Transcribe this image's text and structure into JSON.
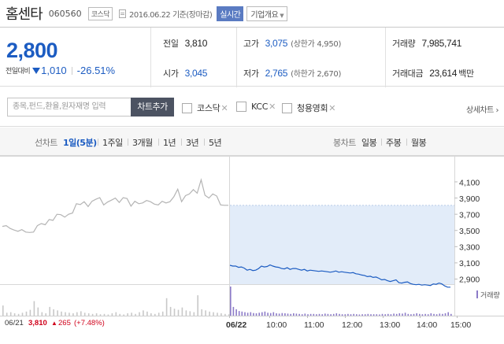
{
  "header": {
    "title": "홈센타",
    "code": "060560",
    "market": "코스닥",
    "date": "2016.06.22 기준(장마감)",
    "realtime_label": "실시간",
    "company_label": "기업개요"
  },
  "price": {
    "current": "2,800",
    "change_label": "전일대비",
    "change": "1,010",
    "change_pct": "-26.51%",
    "direction": "down"
  },
  "stats": {
    "prev_label": "전일",
    "prev": "3,810",
    "high_label": "고가",
    "high": "3,075",
    "high_sub": "(상한가 4,950)",
    "volume_label": "거래량",
    "volume": "7,985,741",
    "open_label": "시가",
    "open": "3,045",
    "low_label": "저가",
    "low": "2,765",
    "low_sub": "(하한가 2,670)",
    "amount_label": "거래대금",
    "amount": "23,614",
    "amount_unit": "백만"
  },
  "compare": {
    "placeholder": "종목,펀드,환율,원자재명 입력",
    "add_button": "차트추가",
    "items": [
      "코스닥",
      "KCC",
      "청용영회"
    ],
    "detail_link": "상세차트 ›"
  },
  "tabs": {
    "line_label": "선차트",
    "line": [
      "1일(5분)",
      "1주일",
      "3개월",
      "1년",
      "3년",
      "5년"
    ],
    "active": "1일(5분)",
    "candle_label": "봉차트",
    "candle": [
      "일봉",
      "주봉",
      "월봉"
    ]
  },
  "colors": {
    "down": "#1c5cc2",
    "up": "#d0021b",
    "accent": "#5a7bc2",
    "volume_prev": "#c8c8c8",
    "volume_today": "#8c7bc8",
    "area_fill": "#e2ecf9",
    "line_prev": "#b4b4b4"
  },
  "chart": {
    "y_ticks": [
      "4,100",
      "3,900",
      "3,700",
      "3,500",
      "3,300",
      "3,100",
      "2,900"
    ],
    "x_ticks": [
      "06/22",
      "10:00",
      "11:00",
      "12:00",
      "13:00",
      "14:00",
      "15:00"
    ],
    "volume_label": "거래량",
    "prev_day_label": "06/21",
    "prev_close": "3,810",
    "prev_change": "265",
    "prev_change_pct": "(+7.48%)"
  },
  "chart_data": {
    "type": "line",
    "ylim": [
      2780,
      4180
    ],
    "prev_day": {
      "name": "06/21",
      "values": [
        3550,
        3560,
        3525,
        3505,
        3490,
        3510,
        3480,
        3475,
        3480,
        3560,
        3585,
        3570,
        3635,
        3625,
        3700,
        3695,
        3665,
        3700,
        3715,
        3830,
        3820,
        3855,
        3795,
        3860,
        3885,
        3905,
        3815,
        3850,
        3875,
        3900,
        3845,
        3905,
        3895,
        3800,
        3860,
        3830,
        3840,
        3870,
        3855,
        3825,
        3815,
        3860,
        3840,
        3855,
        3915,
        4010,
        3855,
        3930,
        3950,
        4005,
        3960,
        4125,
        3935,
        3900,
        3950,
        3925,
        3815,
        3810,
        3810
      ]
    },
    "today": {
      "name": "06/22",
      "values": [
        3070,
        3060,
        3060,
        3045,
        3050,
        3035,
        3010,
        3020,
        3005,
        3010,
        3030,
        3060,
        3050,
        3055,
        3075,
        3060,
        3050,
        3045,
        3030,
        3025,
        3040,
        3020,
        3030,
        3030,
        3020,
        3010,
        3020,
        3000,
        3010,
        3005,
        3000,
        2995,
        3000,
        2995,
        2990,
        2985,
        2990,
        3000,
        2985,
        2990,
        2985,
        2980,
        2975,
        2980,
        2965,
        2960,
        2950,
        2945,
        2930,
        2935,
        2920,
        2925,
        2910,
        2890,
        2895,
        2880,
        2870,
        2880,
        2890,
        2855,
        2850,
        2860,
        2865,
        2845,
        2835,
        2830,
        2835,
        2825,
        2830,
        2825,
        2820,
        2840,
        2835,
        2850,
        2840,
        2815,
        2800,
        2800
      ]
    },
    "volume_prev": [
      35,
      10,
      12,
      8,
      6,
      10,
      14,
      20,
      50,
      28,
      12,
      8,
      30,
      22,
      18,
      14,
      12,
      10,
      8,
      12,
      15,
      10,
      8,
      6,
      8,
      5,
      6,
      4,
      8,
      12,
      6,
      4,
      8,
      10,
      6,
      12,
      18,
      14,
      8,
      6,
      10,
      14,
      60,
      30,
      24,
      20,
      28,
      18,
      15,
      12,
      70,
      22,
      18,
      14,
      12,
      10,
      8,
      6,
      5
    ],
    "volume_today": [
      100,
      30,
      22,
      16,
      14,
      12,
      10,
      12,
      9,
      8,
      10,
      12,
      14,
      10,
      9,
      12,
      8,
      7,
      9,
      8,
      7,
      6,
      8,
      7,
      6,
      5,
      7,
      5,
      6,
      6,
      5,
      6,
      5,
      7,
      6,
      5,
      6,
      8,
      6,
      5,
      5,
      6,
      5,
      6,
      5,
      4,
      5,
      5,
      6,
      5,
      5,
      5,
      4,
      6,
      5,
      6,
      5,
      7,
      6,
      8,
      7,
      10,
      6,
      5,
      6,
      8,
      6,
      5,
      6,
      5,
      8,
      6,
      5,
      7,
      6,
      8,
      12,
      6
    ]
  }
}
